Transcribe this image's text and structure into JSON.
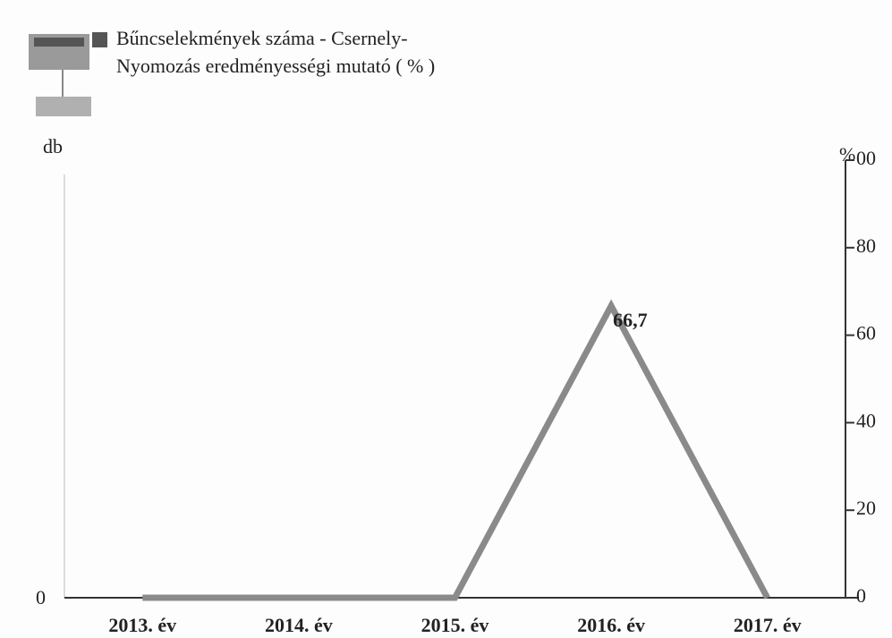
{
  "chart_data": {
    "type": "line",
    "y_label": "db",
    "y2_label": "%",
    "categories": [
      "2013. év",
      "2014. év",
      "2015. év",
      "2016. év",
      "2017. év"
    ],
    "series": [
      {
        "name": "Bűncselekmények száma - Csernely-",
        "color": "#555555",
        "values": [
          null,
          null,
          null,
          null,
          null
        ]
      },
      {
        "name": "Nyomozás eredményességi mutató ( % )",
        "color": "#8a8a8a",
        "axis": "y2",
        "values": [
          0,
          0,
          0,
          66.7,
          0
        ],
        "value_labels": [
          null,
          null,
          null,
          "66,7",
          null
        ]
      }
    ],
    "yticks": [
      0
    ],
    "y2lim": [
      0,
      100
    ],
    "y2ticks": [
      0,
      20,
      40,
      60,
      80,
      {
        "value": 100,
        "label": "00"
      }
    ]
  }
}
